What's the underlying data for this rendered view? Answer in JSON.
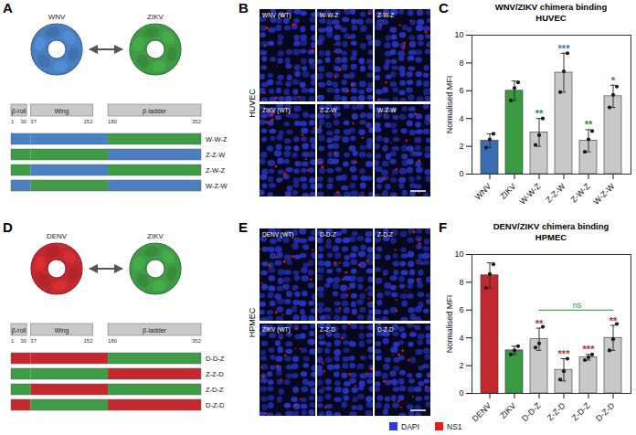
{
  "chart_data": [
    {
      "panel": "C",
      "type": "bar",
      "title": "WNV/ZIKV chimera binding",
      "subtitle": "HUVEC",
      "y_label": "Normalised MFI",
      "categories": [
        "WNV",
        "ZIKV",
        "W-W-Z",
        "Z-Z-W",
        "Z-W-Z",
        "W-Z-W"
      ],
      "values": [
        2.4,
        6.0,
        3.0,
        7.3,
        2.4,
        5.6
      ],
      "errors": [
        0.5,
        0.7,
        1.0,
        1.4,
        0.8,
        0.8
      ],
      "points": [
        [
          1.9,
          2.5,
          2.9
        ],
        [
          5.3,
          6.2,
          6.6
        ],
        [
          2.1,
          2.8,
          4.0
        ],
        [
          5.9,
          7.4,
          8.7
        ],
        [
          1.6,
          2.5,
          3.1
        ],
        [
          4.8,
          5.7,
          6.3
        ]
      ],
      "colors": [
        "#3a6db3",
        "#3a9a42",
        "#c8c8c8",
        "#c8c8c8",
        "#c8c8c8",
        "#c8c8c8"
      ],
      "ylim": [
        0,
        10
      ],
      "yticks": [
        0,
        2,
        4,
        6,
        8,
        10
      ],
      "annotations": [
        {
          "category": "W-W-Z",
          "text": "**",
          "color": "#2e8b3a"
        },
        {
          "category": "Z-Z-W",
          "text": "***",
          "color": "#3a6db3"
        },
        {
          "category": "Z-W-Z",
          "text": "**",
          "color": "#2e8b3a"
        },
        {
          "category": "W-Z-W",
          "text": "*",
          "color": "#3a6db3"
        }
      ]
    },
    {
      "panel": "F",
      "type": "bar",
      "title": "DENV/ZIKV chimera binding",
      "subtitle": "HPMEC",
      "y_label": "Normalised MFI",
      "categories": [
        "DENV",
        "ZIKV",
        "D-D-Z",
        "Z-Z-D",
        "Z-D-Z",
        "D-Z-D"
      ],
      "values": [
        8.5,
        3.1,
        3.9,
        1.7,
        2.6,
        4.0
      ],
      "errors": [
        0.9,
        0.3,
        0.8,
        0.8,
        0.2,
        0.9
      ],
      "points": [
        [
          7.6,
          8.6,
          9.3
        ],
        [
          2.8,
          3.1,
          3.4
        ],
        [
          3.3,
          3.6,
          4.8
        ],
        [
          1.0,
          1.6,
          2.5
        ],
        [
          2.4,
          2.6,
          2.8
        ],
        [
          3.1,
          3.9,
          5.0
        ]
      ],
      "colors": [
        "#c3282f",
        "#3a9a42",
        "#c8c8c8",
        "#c8c8c8",
        "#c8c8c8",
        "#c8c8c8"
      ],
      "ylim": [
        0,
        10
      ],
      "yticks": [
        0,
        2,
        4,
        6,
        8,
        10
      ],
      "annotations": [
        {
          "category": "D-D-Z",
          "text": "**",
          "color": "#c3282f"
        },
        {
          "category": "Z-Z-D",
          "text": "***",
          "color": "#c3282f"
        },
        {
          "category": "Z-D-Z",
          "text": "***",
          "color": "#c3282f"
        },
        {
          "category": "D-Z-D",
          "text": "**",
          "color": "#c3282f"
        }
      ],
      "brackets": [
        {
          "text": "ns",
          "from": "D-D-Z",
          "to": "D-Z-D",
          "y": 6.0,
          "color": "#2e8b3a"
        }
      ]
    }
  ],
  "schematics": [
    {
      "panel": "A",
      "viruses": [
        {
          "code": "W",
          "name": "WNV",
          "color": "#4a7fc1"
        },
        {
          "code": "Z",
          "name": "ZIKV",
          "color": "#3f9b45"
        }
      ],
      "domains": [
        {
          "label": "β-roll",
          "start": 1,
          "end": 30
        },
        {
          "label": "Wing",
          "start": 37,
          "end": 152
        },
        {
          "label": "β-ladder",
          "start": 180,
          "end": 352
        }
      ],
      "constructs": [
        "W-W-Z",
        "Z-Z-W",
        "Z-W-Z",
        "W-Z-W"
      ]
    },
    {
      "panel": "D",
      "viruses": [
        {
          "code": "D",
          "name": "DENV",
          "color": "#c3282f"
        },
        {
          "code": "Z",
          "name": "ZIKV",
          "color": "#3f9b45"
        }
      ],
      "domains": [
        {
          "label": "β-roll",
          "start": 1,
          "end": 30
        },
        {
          "label": "Wing",
          "start": 37,
          "end": 152
        },
        {
          "label": "β-ladder",
          "start": 180,
          "end": 352
        }
      ],
      "constructs": [
        "D-D-Z",
        "Z-Z-D",
        "Z-D-Z",
        "D-Z-D"
      ]
    }
  ],
  "micrographs": [
    {
      "panel": "B",
      "cell": "HUVEC",
      "tiles": [
        [
          "WNV (WT)",
          "W-W-Z",
          "Z-W-Z"
        ],
        [
          "ZIKV (WT)",
          "Z-Z-W",
          "W-Z-W"
        ]
      ]
    },
    {
      "panel": "E",
      "cell": "HPMEC",
      "tiles": [
        [
          "DENV (WT)",
          "D-D-Z",
          "Z-D-Z"
        ],
        [
          "ZIKV (WT)",
          "Z-Z-D",
          "D-Z-D"
        ]
      ]
    }
  ],
  "legend": [
    {
      "label": "DAPI",
      "color": "#2b3bd6"
    },
    {
      "label": "NS1",
      "color": "#e0201b"
    }
  ]
}
